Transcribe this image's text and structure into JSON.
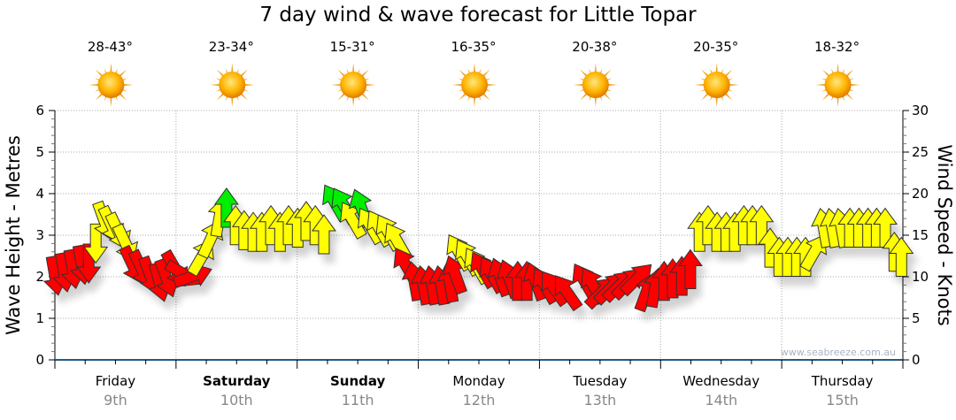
{
  "chart_data": {
    "type": "scatter",
    "title": "7 day wind & wave forecast for Little Topar",
    "ylabel_left": "Wave Height - Metres",
    "ylabel_right": "Wind Speed - Knots",
    "ylim_left": [
      0,
      6
    ],
    "ylim_right": [
      0,
      30
    ],
    "yticks_left": [
      "0",
      "1",
      "2",
      "3",
      "4",
      "5",
      "6"
    ],
    "yticks_right": [
      "0",
      "5",
      "10",
      "15",
      "20",
      "25",
      "30"
    ],
    "xlim_hours": [
      0,
      168
    ],
    "grid": true,
    "watermark": "www.seabreeze.com.au",
    "days": [
      {
        "name": "Friday",
        "date": "9th",
        "temp": "28-43°",
        "bold": false
      },
      {
        "name": "Saturday",
        "date": "10th",
        "temp": "23-34°",
        "bold": true
      },
      {
        "name": "Sunday",
        "date": "11th",
        "temp": "15-31°",
        "bold": true
      },
      {
        "name": "Monday",
        "date": "12th",
        "temp": "16-35°",
        "bold": false
      },
      {
        "name": "Tuesday",
        "date": "13th",
        "temp": "20-38°",
        "bold": false
      },
      {
        "name": "Wednesday",
        "date": "14th",
        "temp": "20-35°",
        "bold": false
      },
      {
        "name": "Thursday",
        "date": "15th",
        "temp": "18-32°",
        "bold": false
      }
    ],
    "weather_icon": "sunny",
    "colors": {
      "r": "#ff0000",
      "y": "#ffff00",
      "g": "#00ee00"
    },
    "wind_points_fields": [
      "hour",
      "knots",
      "direction_deg",
      "color"
    ],
    "wind_points": [
      [
        0,
        10.1,
        170,
        "r"
      ],
      [
        1.8,
        10.5,
        170,
        "r"
      ],
      [
        3.5,
        10.9,
        170,
        "r"
      ],
      [
        5.3,
        11.4,
        170,
        "r"
      ],
      [
        6.7,
        11.6,
        180,
        "r"
      ],
      [
        8.1,
        14.0,
        180,
        "y"
      ],
      [
        9.8,
        16.7,
        160,
        "y"
      ],
      [
        11.2,
        16.2,
        155,
        "y"
      ],
      [
        12.6,
        15.4,
        155,
        "y"
      ],
      [
        14.0,
        14.0,
        155,
        "y"
      ],
      [
        15.4,
        11.4,
        155,
        "r"
      ],
      [
        17.2,
        10.9,
        155,
        "r"
      ],
      [
        18.9,
        10.1,
        160,
        "r"
      ],
      [
        20.7,
        9.3,
        165,
        "r"
      ],
      [
        22.1,
        9.8,
        160,
        "r"
      ],
      [
        23.9,
        10.9,
        150,
        "r"
      ],
      [
        25.6,
        10.3,
        120,
        "r"
      ],
      [
        27.4,
        10.1,
        70,
        "r"
      ],
      [
        29.1,
        12.4,
        30,
        "y"
      ],
      [
        30.9,
        14.6,
        25,
        "y"
      ],
      [
        32.6,
        17.2,
        10,
        "y"
      ],
      [
        34.0,
        18.3,
        0,
        "g"
      ],
      [
        35.8,
        16.2,
        0,
        "y"
      ],
      [
        37.5,
        15.6,
        0,
        "y"
      ],
      [
        39.3,
        15.4,
        0,
        "y"
      ],
      [
        41.0,
        15.4,
        0,
        "y"
      ],
      [
        42.8,
        16.2,
        0,
        "y"
      ],
      [
        44.6,
        15.4,
        0,
        "y"
      ],
      [
        46.3,
        16.2,
        0,
        "y"
      ],
      [
        48.1,
        15.9,
        0,
        "y"
      ],
      [
        49.8,
        16.7,
        0,
        "y"
      ],
      [
        51.6,
        16.2,
        0,
        "y"
      ],
      [
        53.3,
        15.1,
        0,
        "y"
      ],
      [
        55.4,
        19.0,
        -30,
        "g"
      ],
      [
        57.2,
        18.6,
        -30,
        "g"
      ],
      [
        58.9,
        16.9,
        -30,
        "y"
      ],
      [
        60.7,
        18.3,
        -20,
        "g"
      ],
      [
        62.4,
        16.2,
        -30,
        "y"
      ],
      [
        64.2,
        15.9,
        -30,
        "y"
      ],
      [
        66.0,
        15.4,
        -30,
        "y"
      ],
      [
        67.7,
        14.4,
        -30,
        "y"
      ],
      [
        69.5,
        11.4,
        -30,
        "r"
      ],
      [
        71.2,
        9.5,
        -10,
        "r"
      ],
      [
        73.0,
        9.0,
        -10,
        "r"
      ],
      [
        74.7,
        9.0,
        -10,
        "r"
      ],
      [
        76.5,
        9.0,
        -10,
        "r"
      ],
      [
        78.2,
        9.3,
        -10,
        "r"
      ],
      [
        79.3,
        10.3,
        -20,
        "r"
      ],
      [
        80.0,
        13.0,
        -30,
        "y"
      ],
      [
        81.7,
        12.4,
        -30,
        "y"
      ],
      [
        83.5,
        11.4,
        -30,
        "y"
      ],
      [
        84.7,
        10.9,
        -30,
        "r"
      ],
      [
        86.5,
        10.3,
        -30,
        "r"
      ],
      [
        88.2,
        10.0,
        -20,
        "r"
      ],
      [
        90.0,
        9.8,
        -20,
        "r"
      ],
      [
        91.7,
        9.5,
        0,
        "r"
      ],
      [
        93.5,
        9.5,
        0,
        "r"
      ],
      [
        95.2,
        9.5,
        -20,
        "r"
      ],
      [
        97.0,
        9.0,
        -30,
        "r"
      ],
      [
        98.8,
        8.7,
        -35,
        "r"
      ],
      [
        101.4,
        8.2,
        -35,
        "r"
      ],
      [
        104.9,
        9.5,
        -30,
        "r"
      ],
      [
        106.6,
        9.0,
        -30,
        "r"
      ],
      [
        108.4,
        8.2,
        45,
        "r"
      ],
      [
        110.2,
        8.7,
        45,
        "r"
      ],
      [
        111.9,
        9.0,
        45,
        "r"
      ],
      [
        113.7,
        9.3,
        45,
        "r"
      ],
      [
        115.4,
        9.8,
        45,
        "r"
      ],
      [
        117.2,
        8.2,
        20,
        "r"
      ],
      [
        118.9,
        8.7,
        10,
        "r"
      ],
      [
        120.7,
        9.5,
        0,
        "r"
      ],
      [
        122.4,
        9.8,
        0,
        "r"
      ],
      [
        124.2,
        10.1,
        0,
        "r"
      ],
      [
        125.9,
        10.9,
        0,
        "r"
      ],
      [
        127.7,
        15.4,
        0,
        "y"
      ],
      [
        129.4,
        16.2,
        0,
        "y"
      ],
      [
        131.2,
        15.4,
        0,
        "y"
      ],
      [
        133.0,
        15.4,
        0,
        "y"
      ],
      [
        134.7,
        15.4,
        0,
        "y"
      ],
      [
        136.5,
        16.2,
        0,
        "y"
      ],
      [
        138.2,
        16.2,
        0,
        "y"
      ],
      [
        140.0,
        16.2,
        0,
        "y"
      ],
      [
        141.7,
        13.5,
        0,
        "y"
      ],
      [
        143.5,
        12.4,
        0,
        "y"
      ],
      [
        145.2,
        12.4,
        0,
        "y"
      ],
      [
        147.0,
        12.4,
        0,
        "y"
      ],
      [
        148.7,
        12.4,
        0,
        "y"
      ],
      [
        150.5,
        13.0,
        30,
        "y"
      ],
      [
        152.3,
        15.9,
        -10,
        "y"
      ],
      [
        154.0,
        15.9,
        -10,
        "y"
      ],
      [
        155.8,
        15.9,
        -10,
        "y"
      ],
      [
        157.5,
        15.9,
        0,
        "y"
      ],
      [
        159.3,
        15.9,
        0,
        "y"
      ],
      [
        161.1,
        15.9,
        0,
        "y"
      ],
      [
        162.8,
        15.9,
        0,
        "y"
      ],
      [
        164.5,
        15.9,
        0,
        "y"
      ],
      [
        166.3,
        13.0,
        0,
        "y"
      ],
      [
        167.7,
        12.4,
        0,
        "y"
      ]
    ]
  }
}
